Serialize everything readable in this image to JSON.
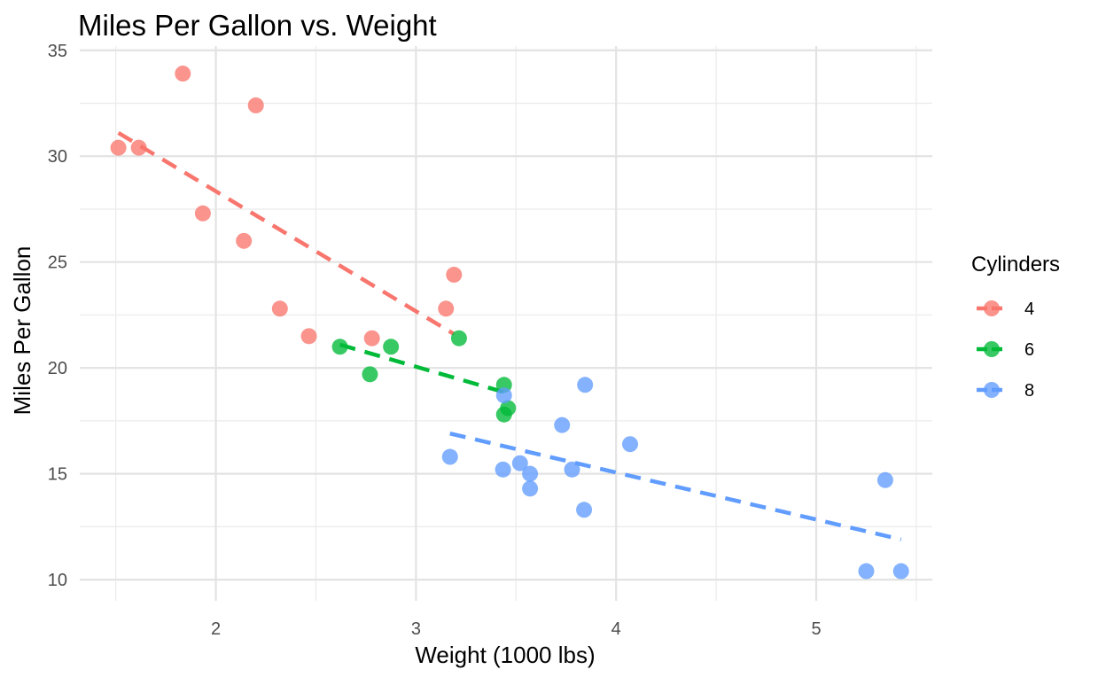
{
  "chart_data": {
    "type": "scatter",
    "title": "Miles Per Gallon vs. Weight",
    "xlabel": "Weight (1000 lbs)",
    "ylabel": "Miles Per Gallon",
    "xlim": [
      1.32,
      5.58
    ],
    "ylim": [
      9.0,
      35.2
    ],
    "xticks": [
      2,
      3,
      4,
      5
    ],
    "yticks": [
      10,
      15,
      20,
      25,
      30,
      35
    ],
    "grid": true,
    "legend": {
      "title": "Cylinders",
      "position": "right"
    },
    "series": [
      {
        "name": "4",
        "color": "#F8766D",
        "points": [
          {
            "x": 1.513,
            "y": 30.4
          },
          {
            "x": 1.615,
            "y": 30.4
          },
          {
            "x": 1.835,
            "y": 33.9
          },
          {
            "x": 1.935,
            "y": 27.3
          },
          {
            "x": 2.14,
            "y": 26.0
          },
          {
            "x": 2.2,
            "y": 32.4
          },
          {
            "x": 2.32,
            "y": 22.8
          },
          {
            "x": 2.465,
            "y": 21.5
          },
          {
            "x": 2.78,
            "y": 21.4
          },
          {
            "x": 3.15,
            "y": 22.8
          },
          {
            "x": 3.19,
            "y": 24.4
          }
        ],
        "fit": {
          "x1": 1.513,
          "y1": 31.1,
          "x2": 3.19,
          "y2": 21.6
        }
      },
      {
        "name": "6",
        "color": "#00BA38",
        "points": [
          {
            "x": 2.62,
            "y": 21.0
          },
          {
            "x": 2.77,
            "y": 19.7
          },
          {
            "x": 2.875,
            "y": 21.0
          },
          {
            "x": 3.215,
            "y": 21.4
          },
          {
            "x": 3.44,
            "y": 19.2
          },
          {
            "x": 3.44,
            "y": 17.8
          },
          {
            "x": 3.46,
            "y": 18.1
          }
        ],
        "fit": {
          "x1": 2.62,
          "y1": 21.1,
          "x2": 3.46,
          "y2": 18.8
        }
      },
      {
        "name": "8",
        "color": "#619CFF",
        "points": [
          {
            "x": 3.17,
            "y": 15.8
          },
          {
            "x": 3.435,
            "y": 15.2
          },
          {
            "x": 3.44,
            "y": 18.7
          },
          {
            "x": 3.52,
            "y": 15.5
          },
          {
            "x": 3.57,
            "y": 15.0
          },
          {
            "x": 3.57,
            "y": 14.3
          },
          {
            "x": 3.73,
            "y": 17.3
          },
          {
            "x": 3.78,
            "y": 15.2
          },
          {
            "x": 3.84,
            "y": 13.3
          },
          {
            "x": 3.845,
            "y": 19.2
          },
          {
            "x": 4.07,
            "y": 16.4
          },
          {
            "x": 5.25,
            "y": 10.4
          },
          {
            "x": 5.345,
            "y": 14.7
          },
          {
            "x": 5.424,
            "y": 10.4
          }
        ],
        "fit": {
          "x1": 3.17,
          "y1": 16.9,
          "x2": 5.424,
          "y2": 11.9
        }
      }
    ]
  }
}
